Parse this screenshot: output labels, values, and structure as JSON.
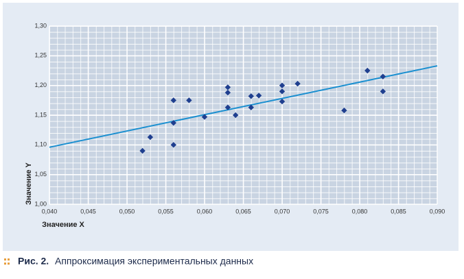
{
  "chart_data": {
    "type": "scatter",
    "xlabel": "Значение X",
    "ylabel": "Значение Y",
    "xlim": [
      0.04,
      0.09
    ],
    "ylim": [
      1.0,
      1.3
    ],
    "xticks": [
      {
        "value": 0.04,
        "label": "0,040"
      },
      {
        "value": 0.045,
        "label": "0,045"
      },
      {
        "value": 0.05,
        "label": "0,050"
      },
      {
        "value": 0.055,
        "label": "0,055"
      },
      {
        "value": 0.06,
        "label": "0,060"
      },
      {
        "value": 0.065,
        "label": "0,065"
      },
      {
        "value": 0.07,
        "label": "0,070"
      },
      {
        "value": 0.075,
        "label": "0,075"
      },
      {
        "value": 0.08,
        "label": "0,080"
      },
      {
        "value": 0.085,
        "label": "0,085"
      },
      {
        "value": 0.09,
        "label": "0,090"
      }
    ],
    "yticks": [
      {
        "value": 1.0,
        "label": "1,00"
      },
      {
        "value": 1.05,
        "label": "1,05"
      },
      {
        "value": 1.1,
        "label": "1,10"
      },
      {
        "value": 1.15,
        "label": "1,15"
      },
      {
        "value": 1.2,
        "label": "1,20"
      },
      {
        "value": 1.25,
        "label": "1,25"
      },
      {
        "value": 1.3,
        "label": "1,30"
      }
    ],
    "grid": true,
    "color": "#1f3f8f",
    "x": [
      0.052,
      0.053,
      0.056,
      0.056,
      0.056,
      0.058,
      0.06,
      0.063,
      0.063,
      0.063,
      0.064,
      0.066,
      0.066,
      0.067,
      0.07,
      0.07,
      0.07,
      0.072,
      0.078,
      0.081,
      0.083,
      0.083
    ],
    "y": [
      1.09,
      1.113,
      1.175,
      1.137,
      1.1,
      1.175,
      1.147,
      1.197,
      1.188,
      1.163,
      1.15,
      1.182,
      1.163,
      1.183,
      1.2,
      1.19,
      1.173,
      1.203,
      1.158,
      1.225,
      1.215,
      1.19
    ],
    "trend": {
      "color": "#1a8fd0",
      "x": [
        0.04,
        0.09
      ],
      "y": [
        1.096,
        1.233
      ]
    }
  },
  "caption": {
    "number": "Рис. 2.",
    "text": "Аппроксимация экспериментальных данных"
  }
}
